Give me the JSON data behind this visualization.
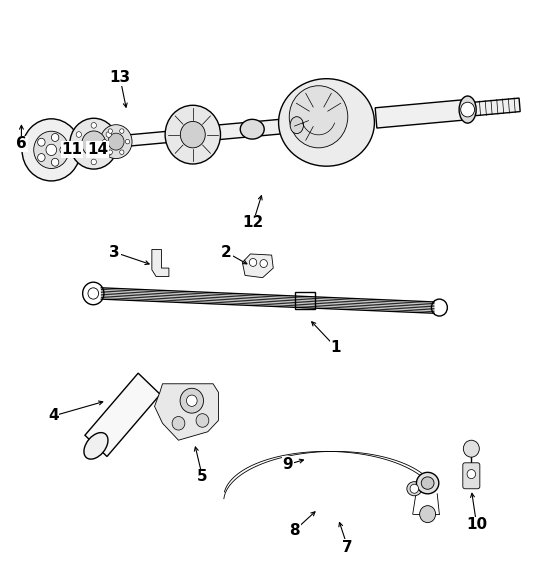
{
  "bg_color": "#ffffff",
  "line_color": "#000000",
  "figsize": [
    5.38,
    5.7
  ],
  "dpi": 100,
  "label_positions": {
    "1": [
      0.62,
      0.395,
      0.57,
      0.435
    ],
    "2": [
      0.42,
      0.545,
      0.47,
      0.525
    ],
    "3": [
      0.22,
      0.545,
      0.285,
      0.53
    ],
    "4": [
      0.1,
      0.27,
      0.195,
      0.295
    ],
    "5": [
      0.38,
      0.165,
      0.365,
      0.22
    ],
    "6": [
      0.04,
      0.75,
      0.065,
      0.785
    ],
    "7": [
      0.65,
      0.038,
      0.625,
      0.09
    ],
    "8": [
      0.555,
      0.068,
      0.6,
      0.105
    ],
    "9": [
      0.545,
      0.185,
      0.578,
      0.195
    ],
    "10": [
      0.89,
      0.08,
      0.878,
      0.14
    ],
    "11": [
      0.138,
      0.748,
      0.158,
      0.775
    ],
    "12": [
      0.475,
      0.615,
      0.49,
      0.67
    ],
    "13": [
      0.225,
      0.87,
      0.238,
      0.81
    ],
    "14": [
      0.185,
      0.748,
      0.208,
      0.772
    ]
  }
}
